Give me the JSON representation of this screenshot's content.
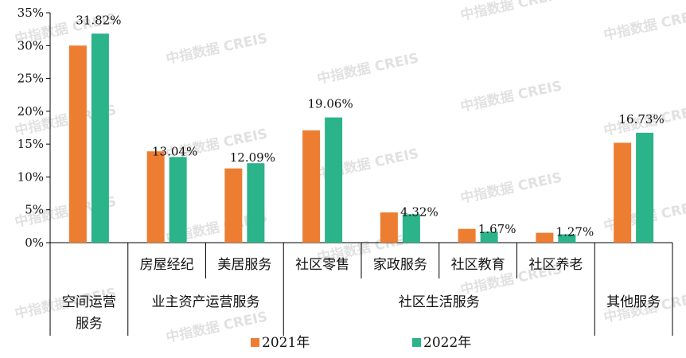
{
  "chart_data": {
    "type": "bar",
    "categories": [
      "空间运营服务",
      "房屋经纪",
      "美居服务",
      "社区零售",
      "家政服务",
      "社区教育",
      "社区养老",
      "其他服务"
    ],
    "category_lines": [
      [
        "空间运营",
        "服务"
      ],
      [
        "房屋经纪"
      ],
      [
        "美居服务"
      ],
      [
        "社区零售"
      ],
      [
        "家政服务"
      ],
      [
        "社区教育"
      ],
      [
        "社区养老"
      ],
      [
        "其他服务"
      ]
    ],
    "groups": [
      {
        "label": "业主资产运营服务",
        "categories": [
          "房屋经纪",
          "美居服务"
        ]
      },
      {
        "label": "社区生活服务",
        "categories": [
          "社区零售",
          "家政服务",
          "社区教育",
          "社区养老"
        ]
      }
    ],
    "series": [
      {
        "name": "2021年",
        "color": "#ED7D31",
        "values": [
          30.0,
          13.9,
          11.3,
          17.1,
          4.6,
          2.1,
          1.5,
          15.2
        ]
      },
      {
        "name": "2022年",
        "color": "#2BB38A",
        "values": [
          31.82,
          13.04,
          12.09,
          19.06,
          4.32,
          1.67,
          1.27,
          16.73
        ]
      }
    ],
    "data_labels": [
      "31.82%",
      "13.04%",
      "12.09%",
      "19.06%",
      "4.32%",
      "1.67%",
      "1.27%",
      "16.73%"
    ],
    "ylim": [
      0,
      35
    ],
    "yticks": [
      "0%",
      "5%",
      "10%",
      "15%",
      "20%",
      "25%",
      "30%",
      "35%"
    ],
    "legend_position": "bottom",
    "grid": false
  },
  "watermark_text": "中指数据 CREIS"
}
